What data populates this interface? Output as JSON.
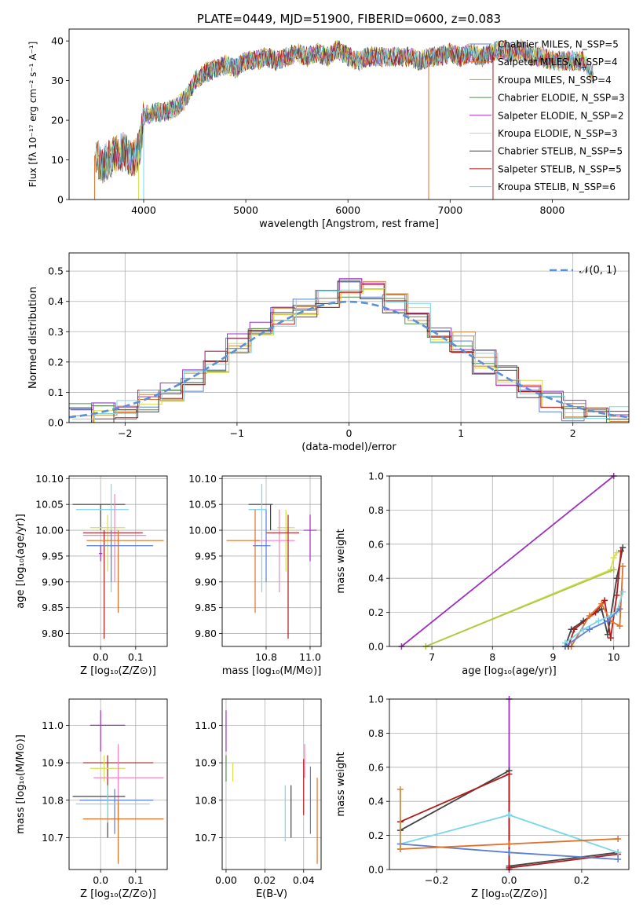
{
  "chart_data": [
    {
      "type": "line",
      "title": "PLATE=0449, MJD=51900, FIBERID=0600, z=0.083",
      "xlabel": "wavelength [Angstrom, rest frame]",
      "ylabel": "Flux [fλ 10⁻¹⁷ erg cm⁻² s⁻¹ A⁻¹]",
      "xlim": [
        3270,
        8750
      ],
      "ylim": [
        0,
        43
      ],
      "xticks": [
        "4000",
        "5000",
        "6000",
        "7000",
        "8000"
      ],
      "yticks": [
        "0",
        "10",
        "20",
        "30",
        "40"
      ],
      "grid": false,
      "legend_position": "top-right",
      "series": [
        {
          "name": "Chabrier MILES, N_SSP=5",
          "color": "#5b7fd6"
        },
        {
          "name": "Salpeter MILES, N_SSP=4",
          "color": "#e0712a"
        },
        {
          "name": "Kroupa MILES, N_SSP=4",
          "color": "#d08a3a"
        },
        {
          "name": "Chabrier ELODIE, N_SSP=3",
          "color": "#4f8f4f"
        },
        {
          "name": "Salpeter ELODIE, N_SSP=2",
          "color": "#9e2fbf"
        },
        {
          "name": "Kroupa ELODIE, N_SSP=3",
          "color": "#d6e04a"
        },
        {
          "name": "Chabrier STELIB, N_SSP=5",
          "color": "#444444"
        },
        {
          "name": "Salpeter STELIB, N_SSP=5",
          "color": "#b01c1c"
        },
        {
          "name": "Kroupa STELIB, N_SSP=6",
          "color": "#79d7e8"
        }
      ],
      "spectrum_envelope": {
        "x": [
          3520,
          3600,
          3700,
          3800,
          3900,
          3960,
          4000,
          4100,
          4200,
          4300,
          4400,
          4500,
          4600,
          4700,
          4800,
          4900,
          5000,
          5100,
          5200,
          5300,
          5400,
          5500,
          5600,
          5700,
          5800,
          5900,
          6000,
          6100,
          6200,
          6300,
          6400,
          6500,
          6600,
          6700,
          6800,
          6900,
          7000,
          7100,
          7200,
          7300,
          7400,
          7500,
          7600,
          7700,
          7800,
          7900,
          8000,
          8100,
          8200,
          8300,
          8400
        ],
        "y": [
          11,
          9,
          11,
          12,
          10,
          13,
          21,
          22,
          22,
          23,
          25,
          30,
          32,
          33,
          34,
          33,
          35,
          35,
          36,
          35,
          36,
          37,
          36,
          37,
          36,
          38,
          36,
          35,
          36,
          36,
          36,
          36,
          36,
          35,
          36,
          36,
          37,
          36,
          37,
          36,
          37,
          38,
          37,
          38,
          36,
          36,
          35,
          35,
          35,
          35,
          32
        ]
      }
    },
    {
      "type": "line",
      "xlabel": "(data-model)/error",
      "ylabel": "Normed distribution",
      "xlim": [
        -2.5,
        2.5
      ],
      "ylim": [
        0,
        0.56
      ],
      "xticks": [
        "−2",
        "−1",
        "0",
        "1",
        "2"
      ],
      "yticks": [
        "0.0",
        "0.1",
        "0.2",
        "0.3",
        "0.4",
        "0.5"
      ],
      "grid": true,
      "legend_position": "top-right",
      "series": [
        {
          "name": "𝒩(0, 1)",
          "color": "#5b8fd6",
          "style": "dashed",
          "x": [
            -2.5,
            -2,
            -1.5,
            -1,
            -0.5,
            0,
            0.5,
            1,
            1.5,
            2,
            2.5
          ],
          "y": [
            0.018,
            0.054,
            0.13,
            0.242,
            0.352,
            0.399,
            0.352,
            0.242,
            0.13,
            0.054,
            0.018
          ]
        }
      ],
      "histogram": {
        "bin_edges": [
          -2.5,
          -2.3,
          -2.1,
          -1.9,
          -1.7,
          -1.5,
          -1.3,
          -1.1,
          -0.9,
          -0.7,
          -0.5,
          -0.3,
          -0.1,
          0.1,
          0.3,
          0.5,
          0.7,
          0.9,
          1.1,
          1.3,
          1.5,
          1.7,
          1.9,
          2.1,
          2.3,
          2.5
        ],
        "heights": [
          0.025,
          0.03,
          0.05,
          0.07,
          0.1,
          0.14,
          0.2,
          0.26,
          0.3,
          0.35,
          0.38,
          0.41,
          0.44,
          0.43,
          0.4,
          0.36,
          0.3,
          0.26,
          0.2,
          0.15,
          0.11,
          0.07,
          0.045,
          0.03,
          0.02
        ],
        "colors": [
          "#5b7fd6",
          "#e0712a",
          "#d08a3a",
          "#4f8f4f",
          "#9e2fbf",
          "#d6e04a",
          "#444444",
          "#b01c1c",
          "#79d7e8"
        ]
      }
    },
    {
      "type": "scatter",
      "xlabel": "Z [log₁₀(Z/Z⊙)]",
      "ylabel": "age  [log₁₀(age/yr)]",
      "xlim": [
        -0.09,
        0.19
      ],
      "ylim": [
        9.775,
        10.105
      ],
      "xticks": [
        "0.0",
        "0.1"
      ],
      "yticks": [
        "9.80",
        "9.85",
        "9.90",
        "9.95",
        "10.00",
        "10.05",
        "10.10"
      ],
      "grid": true,
      "points": [
        {
          "x": 0.0,
          "y": 10.05,
          "xlo": -0.08,
          "xhi": 0.07,
          "ylo": 10.0,
          "yhi": 10.05,
          "color": "#444444"
        },
        {
          "x": 0.03,
          "y": 10.04,
          "xlo": -0.07,
          "xhi": 0.08,
          "ylo": 9.88,
          "yhi": 10.09,
          "color": "#79d7e8"
        },
        {
          "x": 0.02,
          "y": 10.005,
          "xlo": -0.03,
          "xhi": 0.07,
          "ylo": 9.92,
          "yhi": 10.03,
          "color": "#d6e04a"
        },
        {
          "x": 0.04,
          "y": 9.99,
          "xlo": -0.05,
          "xhi": 0.13,
          "ylo": 9.9,
          "yhi": 10.07,
          "color": "#ff7fbf"
        },
        {
          "x": 0.01,
          "y": 9.995,
          "xlo": -0.05,
          "xhi": 0.12,
          "ylo": 9.79,
          "yhi": 10.0,
          "color": "#b01c1c"
        },
        {
          "x": 0.05,
          "y": 9.98,
          "xlo": -0.04,
          "xhi": 0.18,
          "ylo": 9.84,
          "yhi": 10.0,
          "color": "#e0712a"
        },
        {
          "x": 0.03,
          "y": 9.97,
          "xlo": -0.04,
          "xhi": 0.15,
          "ylo": 9.9,
          "yhi": 10.0,
          "color": "#5b7fd6"
        },
        {
          "x": 0.0,
          "y": 9.955,
          "xlo": -0.005,
          "xhi": 0.005,
          "ylo": 9.94,
          "yhi": 9.97,
          "color": "#9e2fbf"
        }
      ]
    },
    {
      "type": "scatter",
      "xlabel": "mass [log₁₀(M/M⊙)]",
      "ylabel": "",
      "xlim": [
        10.6,
        11.05
      ],
      "ylim": [
        9.775,
        10.105
      ],
      "xticks": [
        "10.8",
        "11.0"
      ],
      "yticks": [
        "9.80",
        "9.85",
        "9.90",
        "9.95",
        "10.00",
        "10.05",
        "10.10"
      ],
      "grid": true,
      "points": [
        {
          "x": 10.82,
          "y": 10.05,
          "xlo": 10.72,
          "xhi": 10.83,
          "ylo": 10.0,
          "yhi": 10.05,
          "color": "#444444"
        },
        {
          "x": 10.78,
          "y": 10.04,
          "xlo": 10.72,
          "xhi": 10.8,
          "ylo": 9.88,
          "yhi": 10.09,
          "color": "#79d7e8"
        },
        {
          "x": 10.89,
          "y": 10.005,
          "xlo": 10.85,
          "xhi": 10.93,
          "ylo": 9.92,
          "yhi": 10.04,
          "color": "#d6e04a"
        },
        {
          "x": 10.86,
          "y": 9.98,
          "xlo": 10.75,
          "xhi": 10.93,
          "ylo": 9.88,
          "yhi": 10.04,
          "color": "#ff7fbf"
        },
        {
          "x": 10.9,
          "y": 9.995,
          "xlo": 10.8,
          "xhi": 10.95,
          "ylo": 9.79,
          "yhi": 10.03,
          "color": "#b01c1c"
        },
        {
          "x": 10.75,
          "y": 9.98,
          "xlo": 10.62,
          "xhi": 10.77,
          "ylo": 9.84,
          "yhi": 10.04,
          "color": "#e0712a"
        },
        {
          "x": 10.8,
          "y": 9.97,
          "xlo": 10.74,
          "xhi": 10.82,
          "ylo": 9.9,
          "yhi": 10.04,
          "color": "#5b7fd6"
        },
        {
          "x": 11.0,
          "y": 10.0,
          "xlo": 10.97,
          "xhi": 11.03,
          "ylo": 9.94,
          "yhi": 10.03,
          "color": "#9e2fbf"
        }
      ]
    },
    {
      "type": "line",
      "xlabel": "age  [log₁₀(age/yr)]",
      "ylabel": "mass weight",
      "xlim": [
        6.3,
        10.25
      ],
      "ylim": [
        0,
        1
      ],
      "xticks": [
        "7",
        "8",
        "9",
        "10"
      ],
      "yticks": [
        "0.0",
        "0.2",
        "0.4",
        "0.6",
        "0.8",
        "1.0"
      ],
      "grid": true,
      "series": [
        {
          "color": "#9e2fbf",
          "x": [
            6.5,
            10.0
          ],
          "y": [
            0.0,
            1.0
          ]
        },
        {
          "color": "#d6e04a",
          "x": [
            6.9,
            9.95,
            10.0,
            10.05
          ],
          "y": [
            0.0,
            0.45,
            0.52,
            0.55
          ]
        },
        {
          "color": "#b0c84a",
          "x": [
            6.9,
            10.0
          ],
          "y": [
            0.0,
            0.45
          ]
        },
        {
          "color": "#444444",
          "x": [
            9.2,
            9.3,
            9.5,
            9.8,
            9.9,
            10.05,
            10.15
          ],
          "y": [
            0.0,
            0.1,
            0.15,
            0.22,
            0.07,
            0.4,
            0.58
          ]
        },
        {
          "color": "#b01c1c",
          "x": [
            9.25,
            9.35,
            9.7,
            9.85,
            9.95,
            10.05,
            10.12
          ],
          "y": [
            0.0,
            0.1,
            0.2,
            0.27,
            0.05,
            0.3,
            0.56
          ]
        },
        {
          "color": "#e0712a",
          "x": [
            9.3,
            9.6,
            9.8,
            9.95,
            10.1,
            10.15
          ],
          "y": [
            0.0,
            0.18,
            0.25,
            0.15,
            0.12,
            0.47
          ]
        },
        {
          "color": "#79d7e8",
          "x": [
            9.2,
            9.5,
            9.75,
            9.95,
            10.05,
            10.15
          ],
          "y": [
            0.02,
            0.1,
            0.15,
            0.18,
            0.2,
            0.32
          ]
        },
        {
          "color": "#5b7fd6",
          "x": [
            9.2,
            9.6,
            9.9,
            10.1
          ],
          "y": [
            0.0,
            0.1,
            0.15,
            0.22
          ]
        }
      ]
    },
    {
      "type": "scatter",
      "xlabel": "Z [log₁₀(Z/Z⊙)]",
      "ylabel": "mass [log₁₀(M/M⊙)]",
      "xlim": [
        -0.09,
        0.19
      ],
      "ylim": [
        10.615,
        11.07
      ],
      "xticks": [
        "0.0",
        "0.1"
      ],
      "yticks": [
        "10.7",
        "10.8",
        "10.9",
        "11.0"
      ],
      "grid": true,
      "points": [
        {
          "x": 0.0,
          "y": 11.0,
          "xlo": -0.03,
          "xhi": 0.07,
          "ylo": 10.93,
          "yhi": 11.04,
          "color": "#9e2fbf"
        },
        {
          "x": 0.02,
          "y": 10.9,
          "xlo": -0.05,
          "xhi": 0.15,
          "ylo": 10.83,
          "yhi": 10.92,
          "color": "#b01c1c"
        },
        {
          "x": 0.01,
          "y": 10.885,
          "xlo": -0.03,
          "xhi": 0.07,
          "ylo": 10.85,
          "yhi": 10.92,
          "color": "#d6e04a"
        },
        {
          "x": 0.05,
          "y": 10.86,
          "xlo": -0.02,
          "xhi": 0.18,
          "ylo": 10.75,
          "yhi": 10.95,
          "color": "#ff7fbf"
        },
        {
          "x": 0.02,
          "y": 10.81,
          "xlo": -0.08,
          "xhi": 0.07,
          "ylo": 10.7,
          "yhi": 10.84,
          "color": "#444444"
        },
        {
          "x": 0.04,
          "y": 10.8,
          "xlo": -0.06,
          "xhi": 0.15,
          "ylo": 10.71,
          "yhi": 10.83,
          "color": "#5b7fd6"
        },
        {
          "x": 0.02,
          "y": 10.79,
          "xlo": -0.07,
          "xhi": 0.14,
          "ylo": 10.74,
          "yhi": 10.84,
          "color": "#79d7e8"
        },
        {
          "x": 0.05,
          "y": 10.75,
          "xlo": -0.05,
          "xhi": 0.18,
          "ylo": 10.63,
          "yhi": 10.8,
          "color": "#e0712a"
        }
      ]
    },
    {
      "type": "scatter",
      "xlabel": "E(B-V)",
      "ylabel": "",
      "xlim": [
        -0.002,
        0.049
      ],
      "ylim": [
        10.615,
        11.07
      ],
      "xticks": [
        "0.00",
        "0.02",
        "0.04"
      ],
      "yticks": [
        "10.7",
        "10.8",
        "10.9",
        "11.0"
      ],
      "grid": true,
      "points": [
        {
          "x": 0.0,
          "y": 10.99,
          "ylo": 10.93,
          "yhi": 11.04,
          "color": "#9e2fbf"
        },
        {
          "x": 0.0,
          "y": 10.9,
          "ylo": 10.85,
          "yhi": 10.92,
          "color": "#4f8f4f"
        },
        {
          "x": 0.0035,
          "y": 10.88,
          "ylo": 10.85,
          "yhi": 10.9,
          "color": "#d6e04a"
        },
        {
          "x": 0.0305,
          "y": 10.77,
          "ylo": 10.69,
          "yhi": 10.84,
          "color": "#79d7e8"
        },
        {
          "x": 0.0335,
          "y": 10.77,
          "ylo": 10.7,
          "yhi": 10.84,
          "color": "#444444"
        },
        {
          "x": 0.04,
          "y": 10.86,
          "ylo": 10.76,
          "yhi": 10.91,
          "color": "#b01c1c"
        },
        {
          "x": 0.0405,
          "y": 10.9,
          "ylo": 10.86,
          "yhi": 10.95,
          "color": "#ff7fbf"
        },
        {
          "x": 0.0435,
          "y": 10.8,
          "ylo": 10.71,
          "yhi": 10.89,
          "color": "#5b7fd6"
        },
        {
          "x": 0.047,
          "y": 10.75,
          "ylo": 10.63,
          "yhi": 10.86,
          "color": "#e0712a"
        }
      ]
    },
    {
      "type": "line",
      "xlabel": "Z [log₁₀(Z/Z⊙)]",
      "ylabel": "mass weight",
      "xlim": [
        -0.33,
        0.33
      ],
      "ylim": [
        0,
        1
      ],
      "xticks": [
        "−0.2",
        "0.0",
        "0.2"
      ],
      "yticks": [
        "0.0",
        "0.2",
        "0.4",
        "0.6",
        "0.8",
        "1.0"
      ],
      "grid": true,
      "series": [
        {
          "color": "#9e2fbf",
          "x": [
            0.0,
            0.0
          ],
          "y": [
            0.0,
            1.0
          ]
        },
        {
          "color": "#444444",
          "x": [
            -0.3,
            0.0,
            0.0,
            0.3
          ],
          "y": [
            0.23,
            0.58,
            0.02,
            0.1
          ]
        },
        {
          "color": "#b01c1c",
          "x": [
            -0.3,
            0.0,
            0.0,
            0.3
          ],
          "y": [
            0.28,
            0.56,
            0.01,
            0.09
          ]
        },
        {
          "color": "#79d7e8",
          "x": [
            -0.3,
            0.0,
            0.3
          ],
          "y": [
            0.15,
            0.32,
            0.1
          ]
        },
        {
          "color": "#5b7fd6",
          "x": [
            -0.3,
            0.0,
            0.3
          ],
          "y": [
            0.15,
            0.1,
            0.06
          ]
        },
        {
          "color": "#e0712a",
          "x": [
            -0.3,
            0.0,
            0.3
          ],
          "y": [
            0.12,
            0.15,
            0.18
          ]
        },
        {
          "color": "#d08a3a",
          "x": [
            -0.3,
            -0.3
          ],
          "y": [
            0.12,
            0.47
          ]
        }
      ]
    }
  ]
}
